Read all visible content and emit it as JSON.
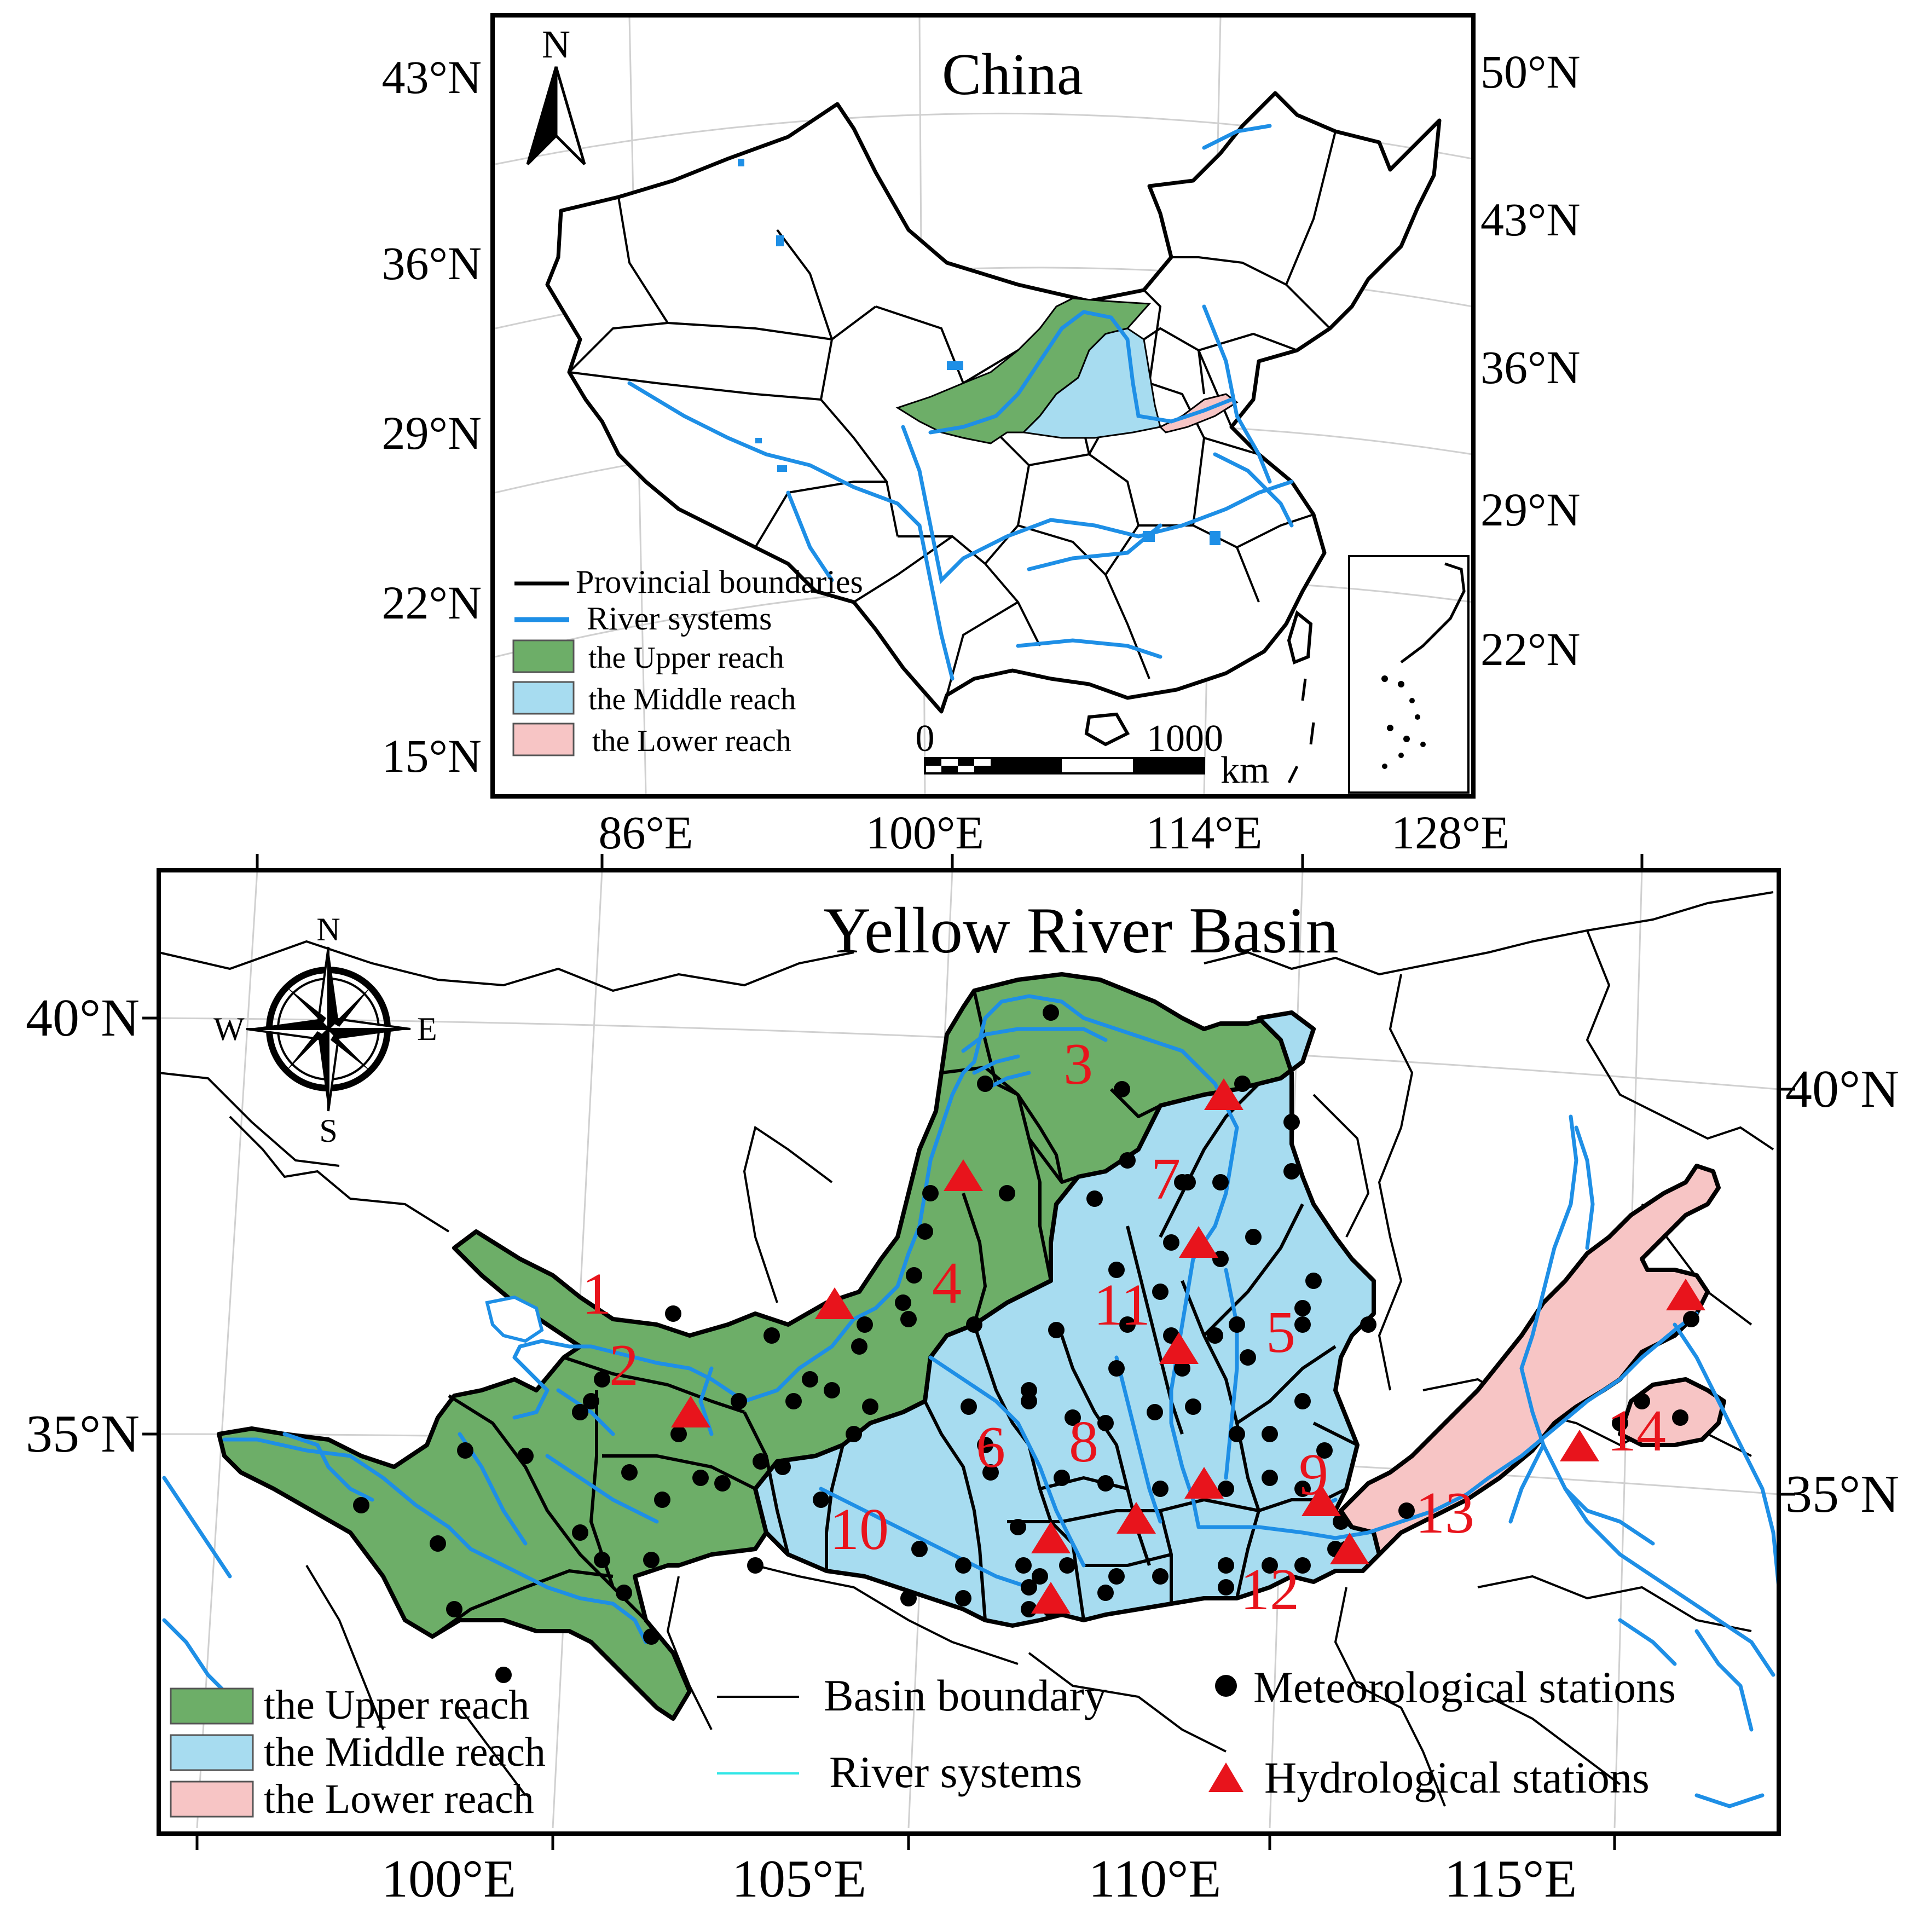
{
  "colors": {
    "upper": "#6dae68",
    "middle": "#a7dcf0",
    "lower": "#f7c5c5",
    "river": "#1e8fe6",
    "boundary": "#000000",
    "station_label": "#e8141c",
    "hydro": "#e8141c"
  },
  "china_map": {
    "title": "China",
    "north_label": "N",
    "lat_left": [
      "43°N",
      "36°N",
      "29°N",
      "22°N",
      "15°N"
    ],
    "lat_right": [
      "50°N",
      "43°N",
      "36°N",
      "29°N",
      "22°N"
    ],
    "lon_bottom": [
      "86°E",
      "100°E",
      "114°E",
      "128°E"
    ],
    "legend": {
      "provincial": "Provincial boundaries",
      "rivers": "River systems",
      "upper": "the Upper reach",
      "middle": "the Middle reach",
      "lower": "the Lower reach"
    },
    "scale": {
      "start": "0",
      "end": "1000",
      "unit": "km"
    }
  },
  "basin_map": {
    "title": "Yellow River Basin",
    "compass": {
      "n": "N",
      "s": "S",
      "e": "E",
      "w": "W"
    },
    "lat_left": [
      "40°N",
      "35°N"
    ],
    "lat_right": [
      "40°N",
      "35°N"
    ],
    "lon_bottom": [
      "100°E",
      "105°E",
      "110°E",
      "115°E"
    ],
    "subbasin_labels": [
      "1",
      "2",
      "3",
      "4",
      "5",
      "6",
      "7",
      "8",
      "9",
      "10",
      "11",
      "12",
      "13",
      "14"
    ],
    "legend": {
      "upper": "the Upper reach",
      "middle": "the Middle reach",
      "lower": "the Lower reach",
      "basin_boundary": "Basin boundary",
      "rivers": "River systems",
      "meteorological": "Meteorological stations",
      "hydrological": "Hydrological stations"
    }
  }
}
